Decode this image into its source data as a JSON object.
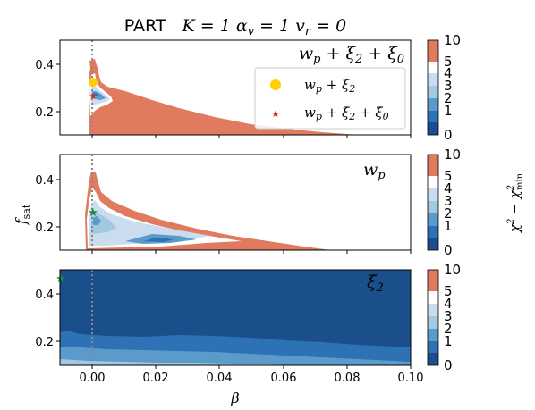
{
  "figure": {
    "title_prefix": "PART",
    "title_params": "K = 1  α",
    "title_sub_v": "v",
    "title_eq": " = 1  v",
    "title_sub_r": "r",
    "title_end": " = 0"
  },
  "colors": {
    "salmon": "#E07B5F",
    "white": "#FFFFFF",
    "light_blue": "#C9DDEE",
    "mid_light_blue": "#A2C8E2",
    "mid_blue": "#5A9BCB",
    "blue": "#2C72B4",
    "dark_blue": "#1A4F8C",
    "gold": "#FFD000",
    "red": "#E41A1C",
    "green": "#1B8A3B",
    "dotted_line": "#888888"
  },
  "chart_data": [
    {
      "type": "contour",
      "panel_label": "w_p + ξ_2 + ξ_0",
      "xlabel": "",
      "ylabel": "",
      "xlim": [
        -0.01,
        0.1
      ],
      "ylim": [
        0.1,
        0.5
      ],
      "yticks": [
        "0.2",
        "0.4"
      ],
      "vertical_line_x": 0.0,
      "legend": {
        "placement": "upper-right",
        "entries": [
          {
            "label": "w_p + ξ_2",
            "marker": "circle",
            "color": "#FFD000"
          },
          {
            "label": "w_p + ξ_2 + ξ_0",
            "marker": "star",
            "color": "#E41A1C"
          }
        ]
      },
      "markers": [
        {
          "x": 0.0,
          "y": 0.32,
          "marker": "circle",
          "color": "#FFD000"
        },
        {
          "x": 0.0,
          "y": 0.26,
          "marker": "star",
          "color": "#E41A1C"
        }
      ],
      "colorbar": {
        "label": "χ² − χ²_min",
        "ticks": [
          "0",
          "1",
          "2",
          "3",
          "4",
          "5",
          "10"
        ]
      }
    },
    {
      "type": "contour",
      "panel_label": "w_p",
      "xlabel": "",
      "ylabel": "f_sat",
      "xlim": [
        -0.01,
        0.1
      ],
      "ylim": [
        0.1,
        0.5
      ],
      "yticks": [
        "0.2",
        "0.4"
      ],
      "vertical_line_x": 0.0,
      "markers": [
        {
          "x": 0.0,
          "y": 0.26,
          "marker": "star",
          "color": "#1B8A3B"
        }
      ],
      "colorbar": {
        "label": "χ² − χ²_min",
        "ticks": [
          "0",
          "1",
          "2",
          "3",
          "4",
          "5",
          "10"
        ]
      }
    },
    {
      "type": "contour",
      "panel_label": "ξ_2",
      "xlabel": "β",
      "ylabel": "",
      "xlim": [
        -0.01,
        0.1
      ],
      "ylim": [
        0.1,
        0.5
      ],
      "xticks": [
        "0.00",
        "0.02",
        "0.04",
        "0.06",
        "0.08",
        "0.10"
      ],
      "yticks": [
        "0.2",
        "0.4"
      ],
      "vertical_line_x": 0.0,
      "markers": [
        {
          "x": -0.01,
          "y": 0.46,
          "marker": "star",
          "color": "#1B8A3B"
        }
      ],
      "colorbar": {
        "label": "χ² − χ²_min",
        "ticks": [
          "0",
          "1",
          "2",
          "3",
          "4",
          "5",
          "10"
        ]
      }
    }
  ]
}
